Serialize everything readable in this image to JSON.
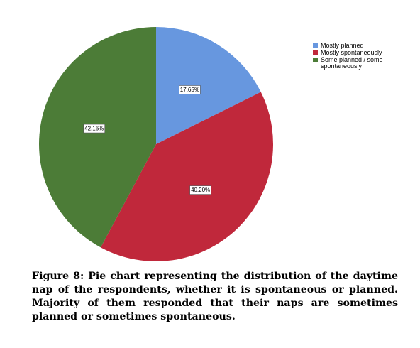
{
  "chart_data": {
    "type": "pie",
    "categories": [
      "Mostly planned",
      "Mostly spontaneously",
      "Some planned / some spontaneously"
    ],
    "values": [
      17.65,
      40.2,
      42.16
    ],
    "value_labels": [
      "17.65%",
      "40.20%",
      "42.16%"
    ],
    "colors": [
      "#6797df",
      "#c0283b",
      "#4c7c37"
    ],
    "legend": "top-right"
  },
  "caption": "Figure 8: Pie chart representing the distribution of the daytime nap of the respondents, whether it is spontaneous or planned. Majority of them responded that their naps are sometimes planned or sometimes spontaneous."
}
